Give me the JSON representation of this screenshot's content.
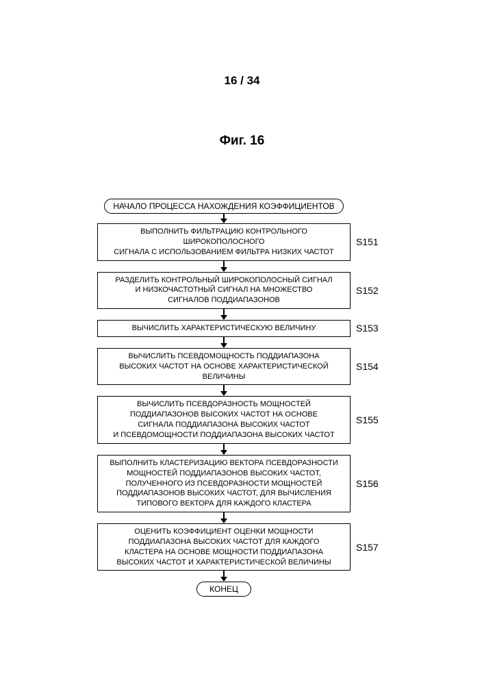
{
  "page_number": "16 / 34",
  "figure_label": "Фиг. 16",
  "flowchart": {
    "start": "НАЧАЛО ПРОЦЕССА НАХОЖДЕНИЯ КОЭФФИЦИЕНТОВ",
    "end": "КОНЕЦ",
    "steps": [
      {
        "label": "S151",
        "text": "ВЫПОЛНИТЬ ФИЛЬТРАЦИЮ КОНТРОЛЬНОГО ШИРОКОПОЛОСНОГО\nСИГНАЛА С ИСПОЛЬЗОВАНИЕМ ФИЛЬТРА НИЗКИХ ЧАСТОТ"
      },
      {
        "label": "S152",
        "text": "РАЗДЕЛИТЬ КОНТРОЛЬНЫЙ ШИРОКОПОЛОСНЫЙ СИГНАЛ\nИ НИЗКОЧАСТОТНЫЙ СИГНАЛ НА МНОЖЕСТВО\nСИГНАЛОВ ПОДДИАПАЗОНОВ"
      },
      {
        "label": "S153",
        "text": "ВЫЧИСЛИТЬ ХАРАКТЕРИСТИЧЕСКУЮ ВЕЛИЧИНУ"
      },
      {
        "label": "S154",
        "text": "ВЫЧИСЛИТЬ ПСЕВДОМОЩНОСТЬ ПОДДИАПАЗОНА\nВЫСОКИХ ЧАСТОТ НА ОСНОВЕ ХАРАКТЕРИСТИЧЕСКОЙ ВЕЛИЧИНЫ"
      },
      {
        "label": "S155",
        "text": "ВЫЧИСЛИТЬ ПСЕВДОРАЗНОСТЬ МОЩНОСТЕЙ\nПОДДИАПАЗОНОВ ВЫСОКИХ ЧАСТОТ НА ОСНОВЕ\nСИГНАЛА ПОДДИАПАЗОНА ВЫСОКИХ ЧАСТОТ\nИ ПСЕВДОМОЩНОСТИ ПОДДИАПАЗОНА ВЫСОКИХ ЧАСТОТ"
      },
      {
        "label": "S156",
        "text": "ВЫПОЛНИТЬ КЛАСТЕРИЗАЦИЮ ВЕКТОРА ПСЕВДОРАЗНОСТИ\nМОЩНОСТЕЙ ПОДДИАПАЗОНОВ ВЫСОКИХ ЧАСТОТ,\nПОЛУЧЕННОГО ИЗ ПСЕВДОРАЗНОСТИ МОЩНОСТЕЙ\nПОДДИАПАЗОНОВ ВЫСОКИХ ЧАСТОТ, ДЛЯ ВЫЧИСЛЕНИЯ\nТИПОВОГО ВЕКТОРА ДЛЯ КАЖДОГО КЛАСТЕРА"
      },
      {
        "label": "S157",
        "text": "ОЦЕНИТЬ КОЭФФИЦИЕНТ ОЦЕНКИ МОЩНОСТИ\nПОДДИАПАЗОНА ВЫСОКИХ ЧАСТОТ ДЛЯ КАЖДОГО\nКЛАСТЕРА НА ОСНОВЕ МОЩНОСТИ ПОДДИАПАЗОНА\nВЫСОКИХ ЧАСТОТ И ХАРАКТЕРИСТИЧЕСКОЙ ВЕЛИЧИНЫ"
      }
    ]
  },
  "style": {
    "border_color": "#000000",
    "background": "#ffffff",
    "font_family": "Arial, sans-serif",
    "box_font_size": 11,
    "label_font_size": 14,
    "title_font_size": 19,
    "header_font_size": 17,
    "border_width": 1.5,
    "terminal_radius": 14
  }
}
